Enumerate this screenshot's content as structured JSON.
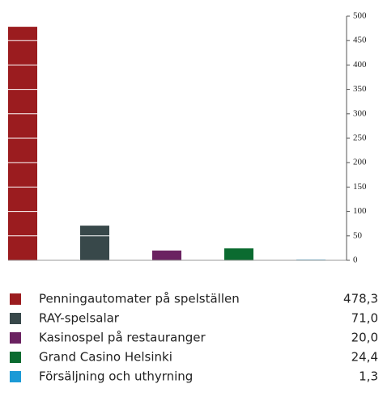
{
  "chart_data": {
    "type": "bar",
    "categories": [
      "Penningautomater på spelställen",
      "RAY-spelsalar",
      "Kasinospel på restauranger",
      "Grand Casino Helsinki",
      "Försäljning och uthyrning"
    ],
    "values": [
      478.3,
      71.0,
      20.0,
      24.4,
      1.3
    ],
    "value_labels": [
      "478,3",
      "71,0",
      "20,0",
      "24,4",
      "1,3"
    ],
    "colors": [
      "#9b1c1f",
      "#38484a",
      "#6b2261",
      "#0b6b30",
      "#1c9ad6"
    ],
    "ylim": [
      0,
      500
    ],
    "yticks": [
      0,
      50,
      100,
      150,
      200,
      250,
      300,
      350,
      400,
      450,
      500
    ],
    "grid": true
  }
}
